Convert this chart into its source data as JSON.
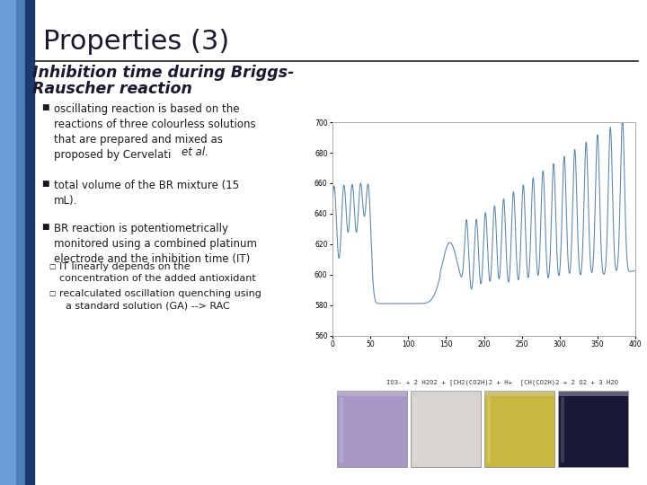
{
  "title": "Properties (3)",
  "subtitle_line1": "Inhibition time during Briggs-",
  "subtitle_line2": "Rauscher reaction",
  "bullet1": "oscillating reaction is based on the\nreactions of three colourless solutions\nthat are prepared and mixed as\nproposed by Cervelati ",
  "bullet1_italic": "et al.",
  "bullet2": "total volume of the BR mixture (15\nmL).",
  "bullet3": "BR reaction is potentiometrically\nmonitored using a combined platinum\nelectrode and the inhibition time (IT)",
  "sub1_line1": "IT linearly depends on the",
  "sub1_line2": "concentration of the added antioxidant",
  "sub2_line1": "recalculated oscillation quenching using",
  "sub2_line2": "  a standard solution (GA) --> RAC",
  "background_color": "#ffffff",
  "title_color": "#1a1a2e",
  "text_color": "#1a1a1a",
  "left_bar_color1": "#6a9fd8",
  "left_bar_color2": "#4a7fba",
  "left_bar_color3": "#1a3a6e",
  "line_color": "#5b85a8",
  "graph_bg": "#ffffff",
  "graph_border": "#aaaaaa",
  "graph_ylim": [
    560,
    700
  ],
  "graph_xlim": [
    0,
    400
  ],
  "graph_yticks": [
    560,
    580,
    600,
    620,
    640,
    660,
    680,
    700
  ],
  "graph_xticks": [
    0,
    50,
    100,
    150,
    200,
    250,
    300,
    350,
    400
  ],
  "beaker_colors": [
    "#a898c8",
    "#d8d4d0",
    "#c8b840",
    "#181838"
  ],
  "formula_text": "IO3- + 2 H2O2 + [CH2(CO2H)2 + H+  [CH(CO2H)2 + 2 O2 + 3 H2O"
}
